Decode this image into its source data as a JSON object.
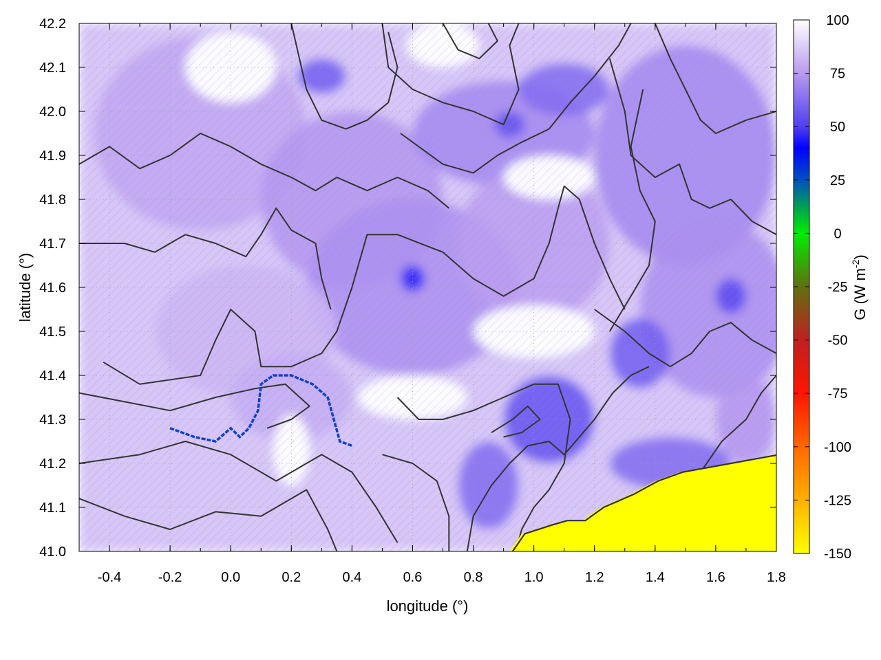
{
  "chart_data": {
    "type": "heatmap",
    "title": "",
    "xlabel": "longitude (°)",
    "ylabel": "latitude (°)",
    "xlim": [
      -0.5,
      1.8
    ],
    "ylim": [
      41.0,
      42.2
    ],
    "x_ticks": [
      "-0.4",
      "-0.2",
      "0.0",
      "0.2",
      "0.4",
      "0.6",
      "0.8",
      "1.0",
      "1.2",
      "1.4",
      "1.6",
      "1.8"
    ],
    "y_ticks": [
      "41.0",
      "41.1",
      "41.2",
      "41.3",
      "41.4",
      "41.5",
      "41.6",
      "41.7",
      "41.8",
      "41.9",
      "42.0",
      "42.1",
      "42.2"
    ],
    "grid": true,
    "colorbar": {
      "label_main": "G (W m",
      "label_sup": "-2",
      "label_close": ")",
      "range": [
        -150,
        100
      ],
      "ticks": [
        "100",
        "75",
        "50",
        "25",
        "0",
        "-25",
        "-50",
        "-75",
        "-100",
        "-125",
        "-150"
      ],
      "palette": [
        {
          "value": 100,
          "color": "#ffffff"
        },
        {
          "value": 75,
          "color": "#b89aef"
        },
        {
          "value": 50,
          "color": "#5040f0"
        },
        {
          "value": 40,
          "color": "#0000ff"
        },
        {
          "value": 25,
          "color": "#0050c0"
        },
        {
          "value": 10,
          "color": "#00b040"
        },
        {
          "value": 0,
          "color": "#00ee00"
        },
        {
          "value": -25,
          "color": "#607010"
        },
        {
          "value": -50,
          "color": "#c02020"
        },
        {
          "value": -75,
          "color": "#ff1500"
        },
        {
          "value": -100,
          "color": "#ff6800"
        },
        {
          "value": -125,
          "color": "#ffb000"
        },
        {
          "value": -150,
          "color": "#ffff00"
        }
      ]
    },
    "blobs": [
      {
        "x": -0.1,
        "y": 41.95,
        "rx": 0.35,
        "ry": 0.22,
        "g": 78
      },
      {
        "x": 0.4,
        "y": 41.8,
        "rx": 0.3,
        "ry": 0.2,
        "g": 74
      },
      {
        "x": 0.6,
        "y": 41.6,
        "rx": 0.35,
        "ry": 0.2,
        "g": 72
      },
      {
        "x": 0.9,
        "y": 41.95,
        "rx": 0.3,
        "ry": 0.12,
        "g": 70
      },
      {
        "x": 1.0,
        "y": 41.7,
        "rx": 0.25,
        "ry": 0.18,
        "g": 76
      },
      {
        "x": 1.5,
        "y": 41.9,
        "rx": 0.3,
        "ry": 0.25,
        "g": 70
      },
      {
        "x": 1.6,
        "y": 41.55,
        "rx": 0.25,
        "ry": 0.2,
        "g": 72
      },
      {
        "x": 0.05,
        "y": 41.5,
        "rx": 0.3,
        "ry": 0.15,
        "g": 82
      },
      {
        "x": 0.2,
        "y": 41.35,
        "rx": 0.2,
        "ry": 0.1,
        "g": 80
      },
      {
        "x": 1.05,
        "y": 41.3,
        "rx": 0.15,
        "ry": 0.1,
        "g": 55
      },
      {
        "x": 0.85,
        "y": 41.15,
        "rx": 0.1,
        "ry": 0.1,
        "g": 62
      },
      {
        "x": 1.35,
        "y": 41.45,
        "rx": 0.1,
        "ry": 0.08,
        "g": 58
      },
      {
        "x": 0.6,
        "y": 41.62,
        "rx": 0.04,
        "ry": 0.03,
        "g": 45
      },
      {
        "x": 0.3,
        "y": 42.08,
        "rx": 0.08,
        "ry": 0.04,
        "g": 58
      },
      {
        "x": 0.92,
        "y": 41.97,
        "rx": 0.05,
        "ry": 0.03,
        "g": 55
      },
      {
        "x": 1.1,
        "y": 42.05,
        "rx": 0.15,
        "ry": 0.06,
        "g": 62
      },
      {
        "x": 1.65,
        "y": 41.58,
        "rx": 0.05,
        "ry": 0.04,
        "g": 52
      },
      {
        "x": 1.7,
        "y": 41.3,
        "rx": 0.1,
        "ry": 0.1,
        "g": 74
      },
      {
        "x": 1.45,
        "y": 41.2,
        "rx": 0.2,
        "ry": 0.06,
        "g": 62
      }
    ],
    "clear_regions": [
      {
        "x": 0.0,
        "y": 42.1,
        "rx": 0.15,
        "ry": 0.08
      },
      {
        "x": 1.05,
        "y": 41.85,
        "rx": 0.15,
        "ry": 0.05
      },
      {
        "x": 1.0,
        "y": 41.5,
        "rx": 0.2,
        "ry": 0.06
      },
      {
        "x": 0.7,
        "y": 42.15,
        "rx": 0.12,
        "ry": 0.05
      },
      {
        "x": 0.2,
        "y": 41.23,
        "rx": 0.06,
        "ry": 0.08
      },
      {
        "x": 0.6,
        "y": 41.35,
        "rx": 0.18,
        "ry": 0.05
      }
    ],
    "river_path": [
      [
        -0.2,
        41.28
      ],
      [
        -0.12,
        41.26
      ],
      [
        -0.05,
        41.25
      ],
      [
        0.0,
        41.28
      ],
      [
        0.03,
        41.26
      ],
      [
        0.06,
        41.28
      ],
      [
        0.09,
        41.32
      ],
      [
        0.1,
        41.38
      ],
      [
        0.14,
        41.4
      ],
      [
        0.2,
        41.4
      ],
      [
        0.27,
        41.38
      ],
      [
        0.32,
        41.35
      ],
      [
        0.34,
        41.3
      ],
      [
        0.36,
        41.25
      ],
      [
        0.4,
        41.24
      ]
    ],
    "sea_boundary": [
      [
        0.92,
        41.0
      ],
      [
        0.96,
        41.04
      ],
      [
        1.05,
        41.06
      ],
      [
        1.1,
        41.07
      ],
      [
        1.16,
        41.07
      ],
      [
        1.22,
        41.1
      ],
      [
        1.32,
        41.13
      ],
      [
        1.4,
        41.16
      ],
      [
        1.48,
        41.18
      ],
      [
        1.56,
        41.19
      ],
      [
        1.64,
        41.2
      ],
      [
        1.72,
        41.21
      ],
      [
        1.8,
        41.22
      ]
    ],
    "contours": [
      [
        [
          -0.5,
          41.12
        ],
        [
          -0.35,
          41.08
        ],
        [
          -0.2,
          41.05
        ],
        [
          -0.05,
          41.09
        ],
        [
          0.1,
          41.08
        ],
        [
          0.25,
          41.14
        ],
        [
          0.32,
          41.05
        ],
        [
          0.35,
          41.0
        ]
      ],
      [
        [
          -0.5,
          41.2
        ],
        [
          -0.3,
          41.22
        ],
        [
          -0.15,
          41.25
        ],
        [
          0.0,
          41.22
        ],
        [
          0.15,
          41.16
        ],
        [
          0.3,
          41.22
        ],
        [
          0.4,
          41.18
        ],
        [
          0.48,
          41.1
        ],
        [
          0.55,
          41.02
        ]
      ],
      [
        [
          -0.5,
          41.36
        ],
        [
          -0.35,
          41.34
        ],
        [
          -0.2,
          41.32
        ],
        [
          -0.05,
          41.35
        ],
        [
          0.08,
          41.37
        ],
        [
          0.18,
          41.38
        ],
        [
          0.26,
          41.33
        ],
        [
          0.2,
          41.3
        ],
        [
          0.12,
          41.28
        ]
      ],
      [
        [
          -0.42,
          41.43
        ],
        [
          -0.3,
          41.38
        ],
        [
          -0.1,
          41.4
        ],
        [
          -0.05,
          41.48
        ],
        [
          0.0,
          41.55
        ],
        [
          0.08,
          41.5
        ],
        [
          0.1,
          41.42
        ],
        [
          0.2,
          41.42
        ],
        [
          0.3,
          41.45
        ],
        [
          0.35,
          41.5
        ],
        [
          0.4,
          41.6
        ],
        [
          0.45,
          41.72
        ],
        [
          0.55,
          41.72
        ],
        [
          0.7,
          41.68
        ],
        [
          0.8,
          41.62
        ],
        [
          0.9,
          41.58
        ],
        [
          1.0,
          41.62
        ],
        [
          1.05,
          41.7
        ],
        [
          1.08,
          41.78
        ],
        [
          1.1,
          41.83
        ],
        [
          1.15,
          41.8
        ],
        [
          1.2,
          41.7
        ],
        [
          1.25,
          41.62
        ],
        [
          1.3,
          41.55
        ]
      ],
      [
        [
          -0.5,
          41.88
        ],
        [
          -0.4,
          41.92
        ],
        [
          -0.3,
          41.87
        ],
        [
          -0.2,
          41.9
        ],
        [
          -0.1,
          41.95
        ],
        [
          0.0,
          41.92
        ],
        [
          0.1,
          41.88
        ],
        [
          0.2,
          41.85
        ],
        [
          0.28,
          41.82
        ],
        [
          0.35,
          41.85
        ],
        [
          0.45,
          41.82
        ],
        [
          0.55,
          41.85
        ],
        [
          0.65,
          41.82
        ],
        [
          0.72,
          41.78
        ]
      ],
      [
        [
          -0.5,
          41.7
        ],
        [
          -0.35,
          41.7
        ],
        [
          -0.25,
          41.68
        ],
        [
          -0.15,
          41.72
        ],
        [
          -0.05,
          41.7
        ],
        [
          0.05,
          41.67
        ],
        [
          0.1,
          41.72
        ],
        [
          0.15,
          41.78
        ],
        [
          0.2,
          41.73
        ],
        [
          0.28,
          41.7
        ],
        [
          0.3,
          41.62
        ],
        [
          0.33,
          41.55
        ]
      ],
      [
        [
          0.5,
          42.2
        ],
        [
          0.52,
          42.1
        ],
        [
          0.6,
          42.05
        ],
        [
          0.7,
          42.02
        ],
        [
          0.8,
          42.0
        ],
        [
          0.9,
          41.97
        ],
        [
          0.95,
          42.05
        ],
        [
          0.92,
          42.15
        ],
        [
          0.95,
          42.2
        ]
      ],
      [
        [
          0.7,
          42.2
        ],
        [
          0.75,
          42.14
        ],
        [
          0.82,
          42.12
        ],
        [
          0.88,
          42.16
        ],
        [
          0.85,
          42.2
        ]
      ],
      [
        [
          0.56,
          41.95
        ],
        [
          0.62,
          41.92
        ],
        [
          0.7,
          41.88
        ],
        [
          0.8,
          41.86
        ],
        [
          0.88,
          41.9
        ],
        [
          0.96,
          41.93
        ],
        [
          1.05,
          41.96
        ],
        [
          1.12,
          42.02
        ],
        [
          1.2,
          42.08
        ],
        [
          1.28,
          42.15
        ],
        [
          1.32,
          42.2
        ]
      ],
      [
        [
          1.4,
          42.2
        ],
        [
          1.45,
          42.12
        ],
        [
          1.5,
          42.05
        ],
        [
          1.55,
          41.98
        ],
        [
          1.6,
          41.95
        ],
        [
          1.7,
          41.98
        ],
        [
          1.8,
          42.0
        ]
      ],
      [
        [
          1.25,
          42.12
        ],
        [
          1.3,
          42.0
        ],
        [
          1.32,
          41.9
        ],
        [
          1.4,
          41.85
        ],
        [
          1.48,
          41.88
        ],
        [
          1.52,
          41.8
        ],
        [
          1.58,
          41.78
        ],
        [
          1.65,
          41.8
        ],
        [
          1.72,
          41.75
        ],
        [
          1.8,
          41.72
        ]
      ],
      [
        [
          1.2,
          41.55
        ],
        [
          1.3,
          41.5
        ],
        [
          1.38,
          41.45
        ],
        [
          1.45,
          41.42
        ],
        [
          1.52,
          41.45
        ],
        [
          1.58,
          41.5
        ],
        [
          1.65,
          41.52
        ],
        [
          1.72,
          41.48
        ],
        [
          1.8,
          41.45
        ]
      ],
      [
        [
          0.55,
          41.35
        ],
        [
          0.62,
          41.3
        ],
        [
          0.7,
          41.3
        ],
        [
          0.8,
          41.32
        ],
        [
          0.9,
          41.35
        ],
        [
          1.0,
          41.38
        ],
        [
          1.08,
          41.38
        ],
        [
          1.12,
          41.3
        ],
        [
          1.1,
          41.2
        ],
        [
          1.05,
          41.14
        ],
        [
          1.0,
          41.1
        ],
        [
          0.96,
          41.05
        ],
        [
          0.94,
          41.0
        ]
      ],
      [
        [
          0.78,
          41.0
        ],
        [
          0.8,
          41.08
        ],
        [
          0.86,
          41.15
        ],
        [
          0.92,
          41.2
        ],
        [
          0.98,
          41.24
        ],
        [
          1.05,
          41.25
        ],
        [
          1.1,
          41.22
        ],
        [
          1.15,
          41.26
        ],
        [
          1.2,
          41.3
        ],
        [
          1.26,
          41.36
        ],
        [
          1.32,
          41.4
        ],
        [
          1.38,
          41.42
        ]
      ],
      [
        [
          0.86,
          41.27
        ],
        [
          0.93,
          41.3
        ],
        [
          0.98,
          41.33
        ],
        [
          1.02,
          41.3
        ],
        [
          0.96,
          41.27
        ],
        [
          0.9,
          41.26
        ]
      ],
      [
        [
          1.45,
          41.0
        ],
        [
          1.5,
          41.1
        ],
        [
          1.55,
          41.18
        ],
        [
          1.62,
          41.25
        ],
        [
          1.7,
          41.3
        ],
        [
          1.75,
          41.36
        ],
        [
          1.8,
          41.4
        ]
      ],
      [
        [
          0.5,
          41.22
        ],
        [
          0.6,
          41.2
        ],
        [
          0.68,
          41.16
        ],
        [
          0.72,
          41.08
        ],
        [
          0.72,
          41.0
        ]
      ],
      [
        [
          1.25,
          41.5
        ],
        [
          1.32,
          41.58
        ],
        [
          1.38,
          41.65
        ],
        [
          1.4,
          41.75
        ],
        [
          1.35,
          41.82
        ],
        [
          1.32,
          41.92
        ],
        [
          1.36,
          42.05
        ]
      ],
      [
        [
          0.2,
          42.2
        ],
        [
          0.25,
          42.05
        ],
        [
          0.3,
          41.98
        ],
        [
          0.38,
          41.96
        ],
        [
          0.45,
          41.98
        ],
        [
          0.52,
          42.02
        ],
        [
          0.55,
          42.1
        ],
        [
          0.52,
          42.18
        ]
      ]
    ]
  }
}
